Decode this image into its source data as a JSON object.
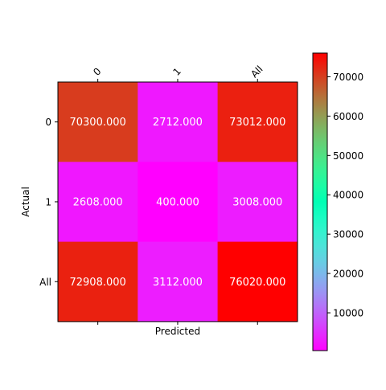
{
  "chart_data": {
    "type": "heatmap",
    "title": "",
    "xlabel": "Predicted",
    "ylabel": "Actual",
    "x_categories": [
      "0",
      "1",
      "All"
    ],
    "y_categories": [
      "0",
      "1",
      "All"
    ],
    "values": [
      [
        70300,
        2712,
        73012
      ],
      [
        2608,
        400,
        3008
      ],
      [
        72908,
        3112,
        76020
      ]
    ],
    "cell_labels": [
      [
        "70300.000",
        "2712.000",
        "73012.000"
      ],
      [
        "2608.000",
        "400.000",
        "3008.000"
      ],
      [
        "72908.000",
        "3112.000",
        "76020.000"
      ]
    ],
    "colormap": "rainbow",
    "color_range": [
      400,
      76020
    ],
    "colorbar_ticks": [
      10000,
      20000,
      30000,
      40000,
      50000,
      60000,
      70000
    ],
    "x_tick_position": "top",
    "x_tick_rotation": 45,
    "label_color": "#ffffff",
    "grid": false
  }
}
